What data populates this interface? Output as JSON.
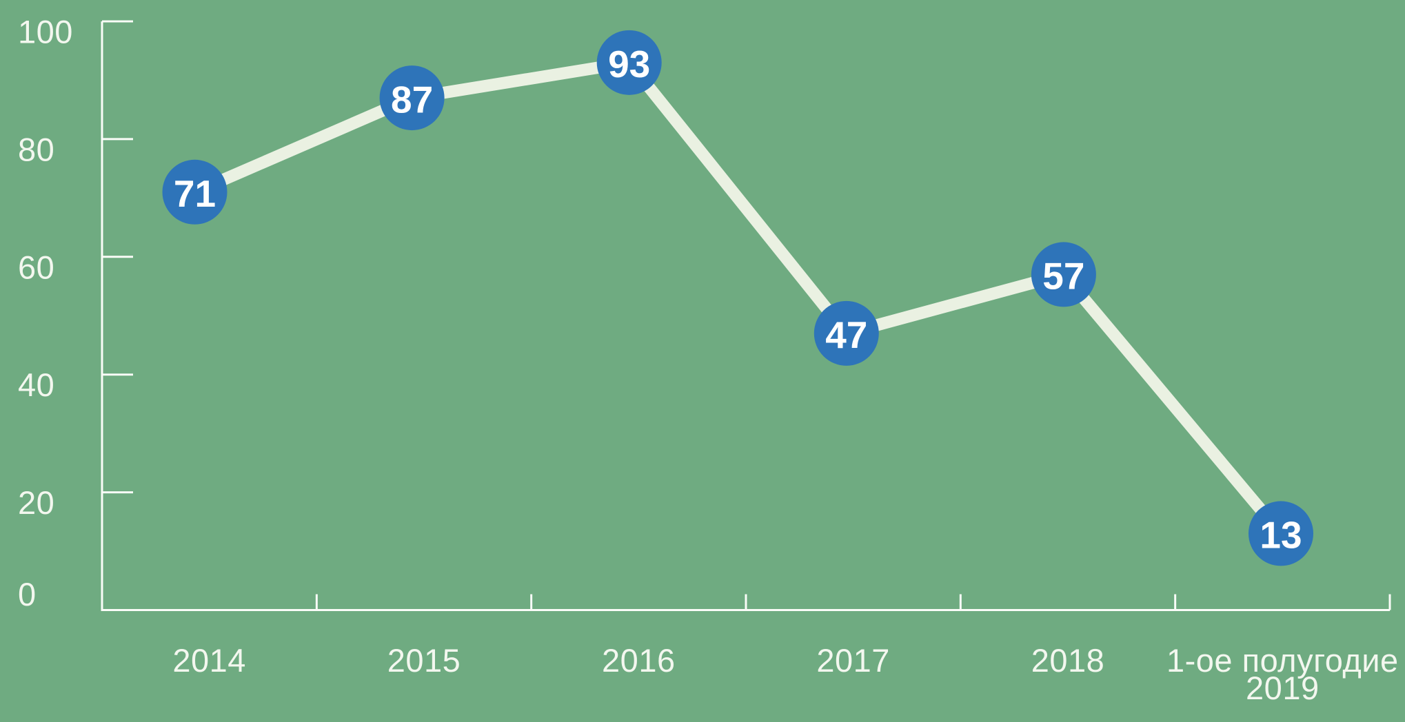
{
  "page": {
    "background_color": "#6FAB81"
  },
  "chart_data": {
    "type": "line",
    "categories": [
      "2014",
      "2015",
      "2016",
      "2017",
      "2018",
      "1-ое полугодие\n2019"
    ],
    "values": [
      71,
      87,
      93,
      47,
      57,
      13
    ],
    "point_labels": [
      "71",
      "87",
      "93",
      "47",
      "57",
      "13"
    ],
    "yticks": [
      0,
      20,
      40,
      60,
      80,
      100
    ],
    "ytick_labels": [
      "0",
      "20",
      "40",
      "60",
      "80",
      "100"
    ],
    "ylim": [
      0,
      100
    ],
    "title": "",
    "xlabel": "",
    "ylabel": "",
    "grid": false,
    "legend": "none",
    "marker_style": "filled-circle-with-value",
    "colors": {
      "background": "#6FAB81",
      "series_line": "#EAF1E2",
      "marker_fill": "#2E74B9",
      "marker_text": "#FFFFFF",
      "axis": "#FAFCF8",
      "label_text": "#F3F7EF"
    }
  }
}
